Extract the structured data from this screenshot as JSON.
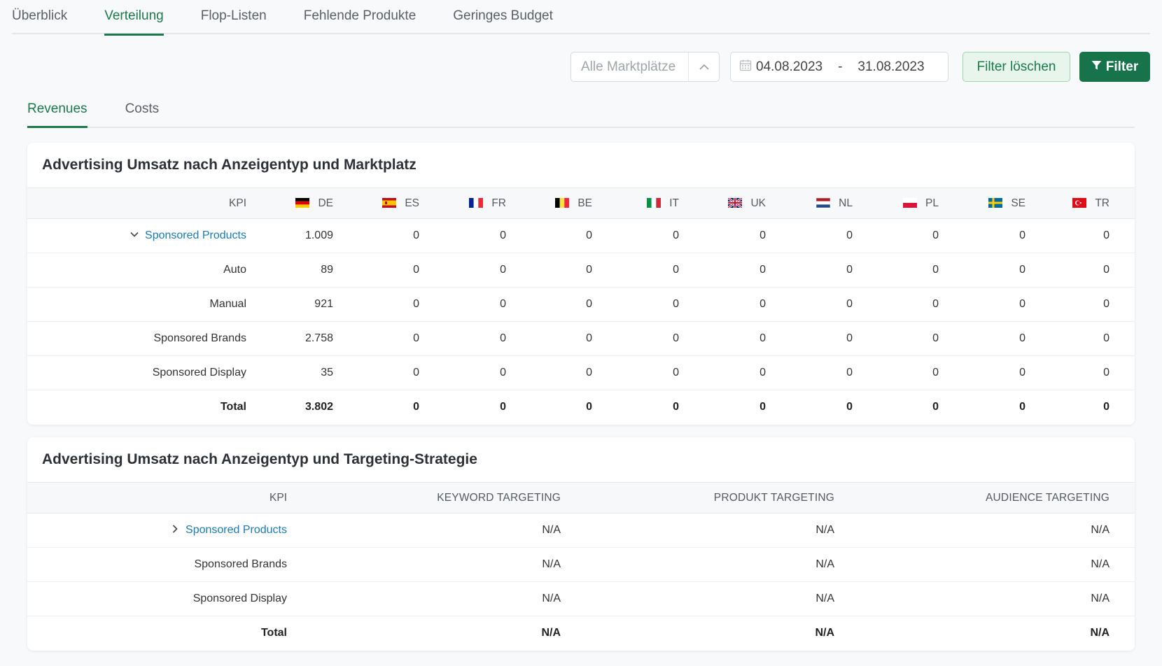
{
  "main_tabs": [
    "Überblick",
    "Verteilung",
    "Flop-Listen",
    "Fehlende Produkte",
    "Geringes Budget"
  ],
  "toolbar": {
    "market_placeholder": "Alle Marktplätze",
    "date_from": "04.08.2023",
    "date_sep": "-",
    "date_to": "31.08.2023",
    "clear_label": "Filter löschen",
    "filter_label": "Filter"
  },
  "sub_tabs": [
    "Revenues",
    "Costs"
  ],
  "table1": {
    "title": "Advertising Umsatz nach Anzeigentyp und Marktplatz",
    "kpi_header": "KPI",
    "markets": [
      "DE",
      "ES",
      "FR",
      "BE",
      "IT",
      "UK",
      "NL",
      "PL",
      "SE",
      "TR"
    ],
    "rows": [
      {
        "kpi": "Sponsored Products",
        "values": [
          "1.009",
          "0",
          "0",
          "0",
          "0",
          "0",
          "0",
          "0",
          "0",
          "0"
        ]
      },
      {
        "kpi": "Auto",
        "values": [
          "89",
          "0",
          "0",
          "0",
          "0",
          "0",
          "0",
          "0",
          "0",
          "0"
        ]
      },
      {
        "kpi": "Manual",
        "values": [
          "921",
          "0",
          "0",
          "0",
          "0",
          "0",
          "0",
          "0",
          "0",
          "0"
        ]
      },
      {
        "kpi": "Sponsored Brands",
        "values": [
          "2.758",
          "0",
          "0",
          "0",
          "0",
          "0",
          "0",
          "0",
          "0",
          "0"
        ]
      },
      {
        "kpi": "Sponsored Display",
        "values": [
          "35",
          "0",
          "0",
          "0",
          "0",
          "0",
          "0",
          "0",
          "0",
          "0"
        ]
      },
      {
        "kpi": "Total",
        "values": [
          "3.802",
          "0",
          "0",
          "0",
          "0",
          "0",
          "0",
          "0",
          "0",
          "0"
        ]
      }
    ]
  },
  "table2": {
    "title": "Advertising Umsatz nach Anzeigentyp und Targeting-Strategie",
    "headers": [
      "KPI",
      "KEYWORD TARGETING",
      "PRODUKT TARGETING",
      "AUDIENCE TARGETING"
    ],
    "rows": [
      {
        "kpi": "Sponsored Products",
        "values": [
          "N/A",
          "N/A",
          "N/A"
        ]
      },
      {
        "kpi": "Sponsored Brands",
        "values": [
          "N/A",
          "N/A",
          "N/A"
        ]
      },
      {
        "kpi": "Sponsored Display",
        "values": [
          "N/A",
          "N/A",
          "N/A"
        ]
      },
      {
        "kpi": "Total",
        "values": [
          "N/A",
          "N/A",
          "N/A"
        ]
      }
    ]
  },
  "colors": {
    "accent": "#1c7a4a",
    "link": "#1a7ab5"
  }
}
